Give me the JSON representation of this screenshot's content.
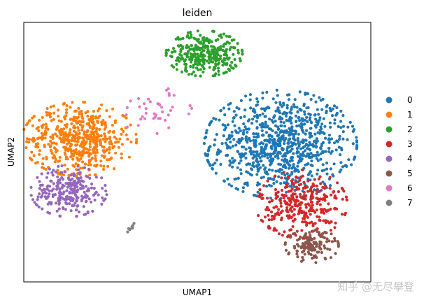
{
  "chart_data": {
    "type": "scatter",
    "title": "leiden",
    "xlabel": "UMAP1",
    "ylabel": "UMAP2",
    "xlim": [
      0,
      100
    ],
    "ylim": [
      0,
      100
    ],
    "grid": false,
    "legend_position": "right",
    "series": [
      {
        "name": "0",
        "color": "#1f77b4",
        "clusters": [
          {
            "cx": 74,
            "cy": 53,
            "sx": 10,
            "sy": 9.5,
            "n": 900
          }
        ]
      },
      {
        "name": "1",
        "color": "#ff7f0e",
        "clusters": [
          {
            "cx": 16,
            "cy": 55,
            "sx": 7.5,
            "sy": 6.5,
            "n": 550
          }
        ]
      },
      {
        "name": "2",
        "color": "#2ca02c",
        "clusters": [
          {
            "cx": 52,
            "cy": 88,
            "sx": 5,
            "sy": 4,
            "n": 330
          }
        ]
      },
      {
        "name": "3",
        "color": "#d62728",
        "clusters": [
          {
            "cx": 80,
            "cy": 30,
            "sx": 6,
            "sy": 6,
            "n": 320
          }
        ]
      },
      {
        "name": "4",
        "color": "#9467bd",
        "clusters": [
          {
            "cx": 13,
            "cy": 35,
            "sx": 5,
            "sy": 4.5,
            "n": 250
          }
        ]
      },
      {
        "name": "5",
        "color": "#8c564b",
        "clusters": [
          {
            "cx": 83,
            "cy": 14,
            "sx": 3.5,
            "sy": 3,
            "n": 140
          }
        ]
      },
      {
        "name": "6",
        "color": "#e377c2",
        "clusters": [
          {
            "cx": 38,
            "cy": 66,
            "sx": 6,
            "sy": 4,
            "n": 40
          }
        ]
      },
      {
        "name": "7",
        "color": "#7f7f7f",
        "clusters": [
          {
            "cx": 31,
            "cy": 21,
            "sx": 1,
            "sy": 1,
            "n": 8
          }
        ]
      }
    ]
  },
  "watermark": "知乎 @无尽攀登"
}
